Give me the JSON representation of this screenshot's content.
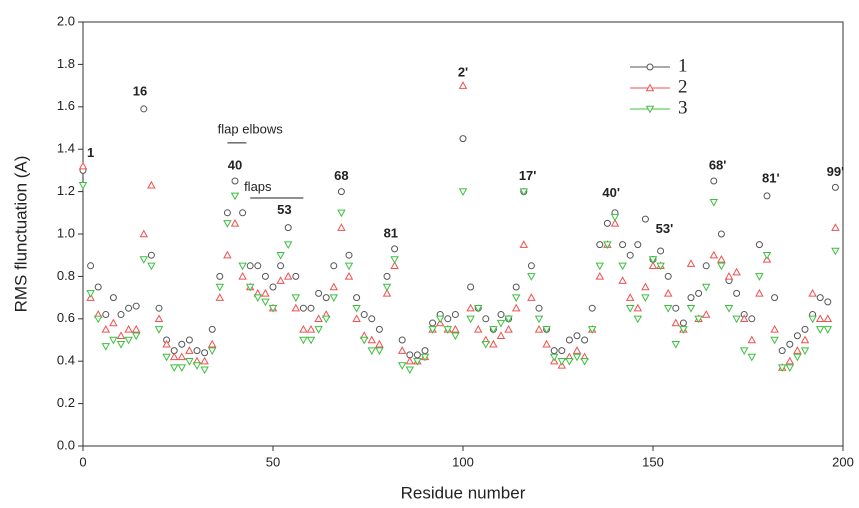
{
  "chart_data": {
    "type": "line",
    "xlabel": "Residue number",
    "ylabel": "RMS flunctuation (A)",
    "xlim": [
      0,
      200
    ],
    "xticks": [
      0,
      50,
      100,
      150,
      200
    ],
    "ylim": [
      0,
      2.0
    ],
    "yticks": [
      {
        "value": 0,
        "label": "0.0"
      },
      0.2,
      0.4,
      0.6,
      0.8,
      {
        "value": 1,
        "label": "1.0"
      },
      1.2,
      1.4,
      1.6,
      1.8,
      {
        "value": 2,
        "label": "2.0"
      }
    ],
    "annotations": [
      "1",
      "16",
      "flap elbows",
      "40",
      "flaps",
      "53",
      "68",
      "81",
      "2'",
      "17'",
      "40'",
      "53'",
      "68'",
      "81'",
      "99'"
    ],
    "x": [
      0,
      2,
      4,
      6,
      8,
      10,
      12,
      14,
      16,
      18,
      20,
      22,
      24,
      26,
      28,
      30,
      32,
      34,
      36,
      38,
      40,
      42,
      44,
      46,
      48,
      50,
      52,
      54,
      56,
      58,
      60,
      62,
      64,
      66,
      68,
      70,
      72,
      74,
      76,
      78,
      80,
      82,
      84,
      86,
      88,
      90,
      92,
      94,
      96,
      98,
      100,
      102,
      104,
      106,
      108,
      110,
      112,
      114,
      116,
      118,
      120,
      122,
      124,
      126,
      128,
      130,
      132,
      134,
      136,
      138,
      140,
      142,
      144,
      146,
      148,
      150,
      152,
      154,
      156,
      158,
      160,
      162,
      164,
      166,
      168,
      170,
      172,
      174,
      176,
      178,
      180,
      182,
      184,
      186,
      188,
      190,
      192,
      194,
      196,
      198
    ],
    "series": [
      {
        "name": "1",
        "color": "#555555",
        "marker": "circle",
        "values": [
          1.3,
          0.85,
          0.75,
          0.62,
          0.7,
          0.62,
          0.65,
          0.66,
          1.59,
          0.9,
          0.65,
          0.5,
          0.45,
          0.48,
          0.5,
          0.45,
          0.44,
          0.55,
          0.8,
          1.1,
          1.25,
          1.1,
          0.85,
          0.85,
          0.8,
          0.75,
          0.85,
          1.03,
          0.8,
          0.65,
          0.65,
          0.72,
          0.7,
          0.85,
          1.2,
          0.9,
          0.7,
          0.62,
          0.6,
          0.55,
          0.8,
          0.93,
          0.5,
          0.43,
          0.43,
          0.45,
          0.58,
          0.62,
          0.6,
          0.62,
          1.45,
          0.75,
          0.65,
          0.6,
          0.55,
          0.62,
          0.6,
          0.75,
          1.2,
          0.85,
          0.65,
          0.55,
          0.45,
          0.45,
          0.5,
          0.52,
          0.5,
          0.65,
          0.95,
          1.05,
          1.1,
          0.95,
          0.9,
          0.95,
          1.07,
          0.88,
          0.92,
          0.8,
          0.65,
          0.58,
          0.7,
          0.72,
          0.85,
          1.25,
          1.0,
          0.78,
          0.72,
          0.62,
          0.6,
          0.95,
          1.18,
          0.7,
          0.45,
          0.48,
          0.52,
          0.55,
          0.62,
          0.7,
          0.68,
          1.22
        ]
      },
      {
        "name": "2",
        "color": "#f05050",
        "marker": "triangle-up",
        "values": [
          1.32,
          0.7,
          0.62,
          0.55,
          0.58,
          0.52,
          0.55,
          0.55,
          1.0,
          1.23,
          0.6,
          0.48,
          0.42,
          0.42,
          0.45,
          0.4,
          0.4,
          0.48,
          0.7,
          0.9,
          1.05,
          0.8,
          0.75,
          0.72,
          0.72,
          0.65,
          0.78,
          0.8,
          0.65,
          0.55,
          0.55,
          0.6,
          0.62,
          0.75,
          1.03,
          0.8,
          0.6,
          0.52,
          0.5,
          0.48,
          0.72,
          0.85,
          0.45,
          0.4,
          0.4,
          0.42,
          0.55,
          0.58,
          0.55,
          0.55,
          1.7,
          0.65,
          0.55,
          0.5,
          0.48,
          0.52,
          0.55,
          0.65,
          0.95,
          0.7,
          0.55,
          0.48,
          0.4,
          0.38,
          0.42,
          0.45,
          0.42,
          0.55,
          0.8,
          0.95,
          1.05,
          0.78,
          0.7,
          0.65,
          0.75,
          0.85,
          0.85,
          0.72,
          0.58,
          0.55,
          0.86,
          0.6,
          0.62,
          0.9,
          0.88,
          0.8,
          0.82,
          0.6,
          0.5,
          0.72,
          0.88,
          0.55,
          0.37,
          0.4,
          0.45,
          0.5,
          0.72,
          0.6,
          0.6,
          1.03
        ]
      },
      {
        "name": "3",
        "color": "#3cc040",
        "marker": "triangle-down",
        "values": [
          1.23,
          0.72,
          0.6,
          0.47,
          0.5,
          0.48,
          0.5,
          0.52,
          0.88,
          0.85,
          0.55,
          0.42,
          0.37,
          0.37,
          0.4,
          0.38,
          0.36,
          0.45,
          0.75,
          1.05,
          1.18,
          0.85,
          0.75,
          0.7,
          0.68,
          0.65,
          0.9,
          0.95,
          0.7,
          0.5,
          0.5,
          0.55,
          0.6,
          0.7,
          1.1,
          0.85,
          0.65,
          0.5,
          0.45,
          0.45,
          0.75,
          0.88,
          0.38,
          0.36,
          0.4,
          0.42,
          0.55,
          0.6,
          0.55,
          0.52,
          1.2,
          0.6,
          0.65,
          0.48,
          0.55,
          0.58,
          0.6,
          0.7,
          1.2,
          0.8,
          0.6,
          0.55,
          0.42,
          0.4,
          0.4,
          0.42,
          0.4,
          0.55,
          0.85,
          0.95,
          1.08,
          0.85,
          0.65,
          0.6,
          0.7,
          0.88,
          0.85,
          0.65,
          0.48,
          0.55,
          0.65,
          0.6,
          0.75,
          1.15,
          0.85,
          0.65,
          0.6,
          0.45,
          0.42,
          0.8,
          0.9,
          0.5,
          0.37,
          0.37,
          0.42,
          0.45,
          0.6,
          0.55,
          0.55,
          0.92
        ]
      }
    ]
  }
}
